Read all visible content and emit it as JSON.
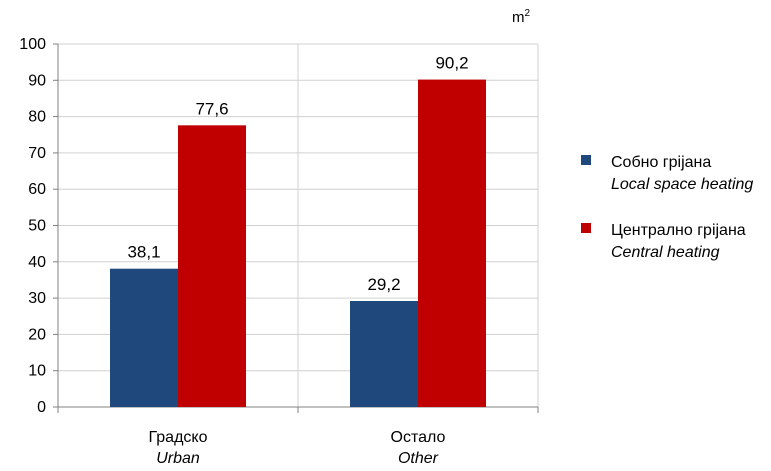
{
  "chart_data": {
    "type": "bar",
    "unit": "m",
    "unit_superscript": "2",
    "categories": [
      {
        "label": "Градско",
        "label_en": "Urban"
      },
      {
        "label": "Остало",
        "label_en": "Other"
      }
    ],
    "series": [
      {
        "name": "Собно грijана",
        "name_en": "Local space heating",
        "color": "#1F497D",
        "values": [
          38.1,
          29.2
        ],
        "labels": [
          "38,1",
          "29,2"
        ]
      },
      {
        "name": "Централно грijана",
        "name_en": "Central heating",
        "color": "#C00000",
        "values": [
          77.6,
          90.2
        ],
        "labels": [
          "77,6",
          "90,2"
        ]
      }
    ],
    "ylim": [
      0,
      100
    ],
    "yticks": [
      0,
      10,
      20,
      30,
      40,
      50,
      60,
      70,
      80,
      90,
      100
    ],
    "grid": true,
    "legend_position": "right"
  }
}
